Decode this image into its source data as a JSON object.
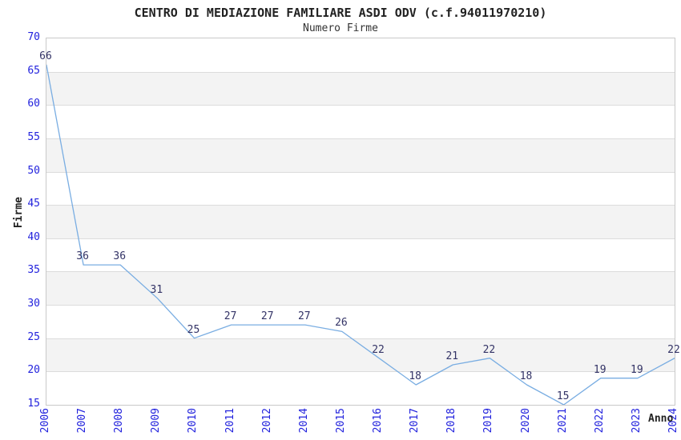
{
  "header": {
    "title": "CENTRO DI MEDIAZIONE FAMILIARE ASDI ODV (c.f.94011970210)",
    "subtitle": "Numero Firme"
  },
  "chart_data": {
    "type": "line",
    "title": "CENTRO DI MEDIAZIONE FAMILIARE ASDI ODV (c.f.94011970210)",
    "subtitle": "Numero Firme",
    "xlabel": "Anno",
    "ylabel": "Firme",
    "categories": [
      "2006",
      "2007",
      "2008",
      "2009",
      "2010",
      "2011",
      "2012",
      "2014",
      "2015",
      "2016",
      "2017",
      "2018",
      "2019",
      "2020",
      "2021",
      "2022",
      "2023",
      "2024"
    ],
    "series": [
      {
        "name": "Numero Firme",
        "values": [
          66,
          36,
          36,
          31,
          25,
          27,
          27,
          27,
          26,
          22,
          18,
          21,
          22,
          18,
          15,
          19,
          19,
          22
        ]
      }
    ],
    "data_labels_shown": true,
    "ylim": [
      15,
      70
    ],
    "ytick_step": 5,
    "grid": "horizontal gridlines every 5 units with alternating white/gray bands",
    "legend_position": "none",
    "colors": {
      "line": "#79ade2",
      "tick_label": "#2222dd",
      "data_label": "#333366",
      "band_gray": "#f3f3f3",
      "gridline": "#dcdcdc",
      "plot_border": "#c9c9c9",
      "text": "#222222"
    }
  }
}
